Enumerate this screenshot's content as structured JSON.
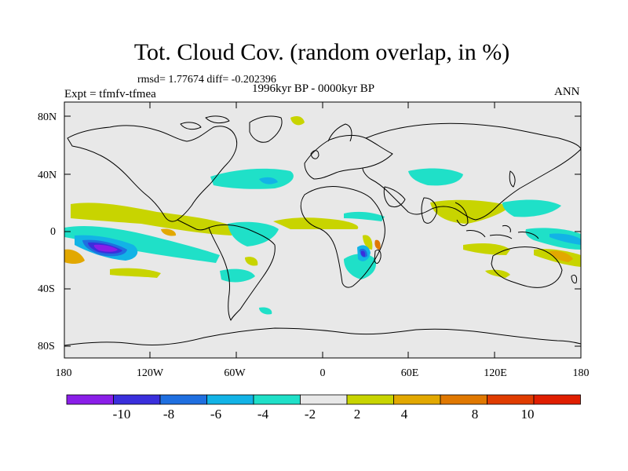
{
  "title": "Tot. Cloud Cov. (random overlap, in %)",
  "stats": "rmsd= 1.77674 diff= -0.202396",
  "period": "1996kyr BP - 0000kyr BP",
  "experiment": "Expt = tfmfv-tfmea",
  "season": "ANN",
  "lat_ticks": [
    "80N",
    "40N",
    "0",
    "40S",
    "80S"
  ],
  "lon_ticks": [
    "180",
    "120W",
    "60W",
    "0",
    "60E",
    "120E",
    "180"
  ],
  "colorbar": {
    "labels": [
      "-10",
      "-8",
      "-6",
      "-4",
      "-2",
      "2",
      "4",
      "8",
      "10"
    ],
    "colors": [
      "#8a1ee8",
      "#3a2fdc",
      "#1f6fe0",
      "#12b3e6",
      "#1fe0c8",
      "#e8e8e8",
      "#c8d400",
      "#e2a800",
      "#e07800",
      "#e03c00",
      "#e01e00"
    ]
  },
  "colors": {
    "ocean_background": "#e8e8e8",
    "coastline": "#000000"
  }
}
